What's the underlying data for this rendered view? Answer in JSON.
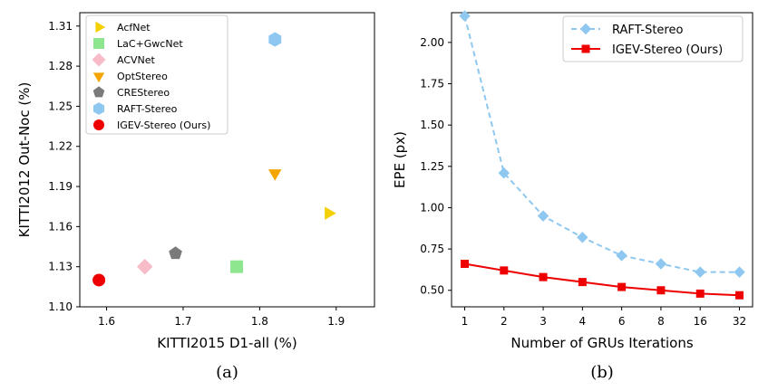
{
  "chart_data": [
    {
      "type": "scatter",
      "caption": "(a)",
      "xlabel": "KITTI2015 D1-all (%)",
      "ylabel": "KITTI2012 Out-Noc (%)",
      "xlim": [
        1.565,
        1.95
      ],
      "ylim": [
        1.1,
        1.32
      ],
      "xticks": [
        1.6,
        1.7,
        1.8,
        1.9
      ],
      "yticks": [
        1.1,
        1.13,
        1.16,
        1.19,
        1.22,
        1.25,
        1.28,
        1.31
      ],
      "xtick_labels": [
        "1.6",
        "1.7",
        "1.8",
        "1.9"
      ],
      "ytick_labels": [
        "1.10",
        "1.13",
        "1.16",
        "1.19",
        "1.22",
        "1.25",
        "1.28",
        "1.31"
      ],
      "legend_position": "top-left",
      "series": [
        {
          "name": "AcfNet",
          "marker": "triangle-right",
          "color": "#f5d000",
          "x": 1.89,
          "y": 1.17
        },
        {
          "name": "LaC+GwcNet",
          "marker": "square",
          "color": "#8ee68e",
          "x": 1.77,
          "y": 1.13
        },
        {
          "name": "ACVNet",
          "marker": "diamond",
          "color": "#f8bcc8",
          "x": 1.65,
          "y": 1.13
        },
        {
          "name": "OptStereo",
          "marker": "triangle-down",
          "color": "#f5a500",
          "x": 1.82,
          "y": 1.2
        },
        {
          "name": "CREStereo",
          "marker": "pentagon",
          "color": "#7a7a7a",
          "x": 1.69,
          "y": 1.14
        },
        {
          "name": "RAFT-Stereo",
          "marker": "hexagon",
          "color": "#8ec8f0",
          "x": 1.82,
          "y": 1.3
        },
        {
          "name": "IGEV-Stereo (Ours)",
          "marker": "circle",
          "color": "#ee0000",
          "x": 1.59,
          "y": 1.12
        }
      ]
    },
    {
      "type": "line",
      "caption": "(b)",
      "xlabel": "Number of GRUs Iterations",
      "ylabel": "EPE (px)",
      "categories": [
        "1",
        "2",
        "3",
        "4",
        "6",
        "8",
        "16",
        "32"
      ],
      "ylim": [
        0.4,
        2.18
      ],
      "yticks": [
        0.5,
        0.75,
        1.0,
        1.25,
        1.5,
        1.75,
        2.0
      ],
      "ytick_labels": [
        "0.50",
        "0.75",
        "1.00",
        "1.25",
        "1.50",
        "1.75",
        "2.00"
      ],
      "legend_position": "top-right",
      "series": [
        {
          "name": "RAFT-Stereo",
          "color": "#8ec8f0",
          "style": "dashed",
          "marker": "diamond",
          "values": [
            2.16,
            1.21,
            0.95,
            0.82,
            0.71,
            0.66,
            0.61,
            0.61
          ]
        },
        {
          "name": "IGEV-Stereo (Ours)",
          "color": "#ee0000",
          "style": "solid",
          "marker": "square",
          "values": [
            0.66,
            0.62,
            0.58,
            0.55,
            0.52,
            0.5,
            0.48,
            0.47
          ]
        }
      ]
    }
  ]
}
